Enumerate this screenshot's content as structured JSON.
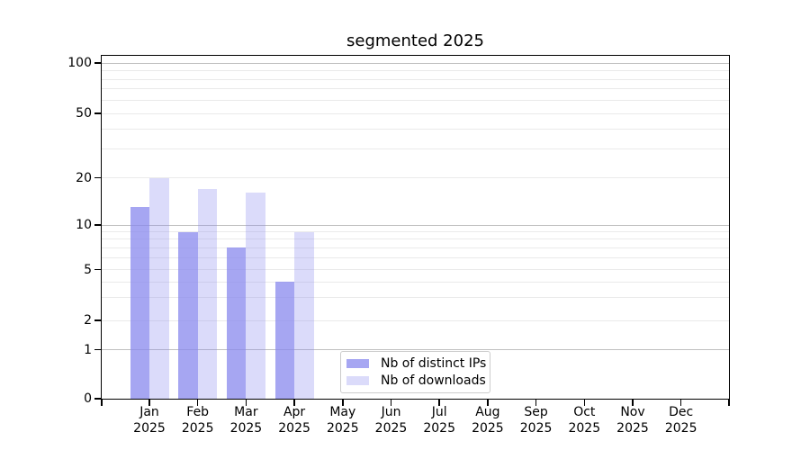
{
  "chart_data": {
    "type": "bar",
    "title": "segmented 2025",
    "year_label": "2025",
    "categories": [
      "Jan",
      "Feb",
      "Mar",
      "Apr",
      "May",
      "Jun",
      "Jul",
      "Aug",
      "Sep",
      "Oct",
      "Nov",
      "Dec"
    ],
    "series": [
      {
        "name": "Nb of distinct IPs",
        "color": "rgba(136,136,238,0.75)",
        "values": [
          13,
          9,
          7,
          4,
          0,
          0,
          0,
          0,
          0,
          0,
          0,
          0
        ]
      },
      {
        "name": "Nb of downloads",
        "color": "rgba(136,136,238,0.30)",
        "values": [
          20,
          17,
          16,
          9,
          0,
          0,
          0,
          0,
          0,
          0,
          0,
          0
        ]
      }
    ],
    "yticks": [
      0,
      1,
      2,
      5,
      10,
      20,
      50,
      100
    ],
    "major_gridlines": [
      1,
      10,
      100
    ],
    "minor_gridlines": [
      2,
      3,
      4,
      5,
      6,
      7,
      8,
      9,
      20,
      30,
      40,
      50,
      60,
      70,
      80,
      90
    ],
    "ylim": [
      0,
      110
    ],
    "yscale": "log-like (linear from 0 to 1)",
    "grid": "horizontal",
    "legend_position": "lower center"
  },
  "legend": {
    "items": [
      {
        "label": "Nb of distinct IPs",
        "color": "rgba(136,136,238,0.75)"
      },
      {
        "label": "Nb of downloads",
        "color": "rgba(136,136,238,0.30)"
      }
    ]
  },
  "colors": {
    "bar_base": "#8888ee",
    "grid_major": "#c0c0c0",
    "grid_minor": "#eaeaea",
    "axis": "#000000",
    "legend_border": "#cccccc",
    "background": "#ffffff",
    "text": "#000000"
  }
}
